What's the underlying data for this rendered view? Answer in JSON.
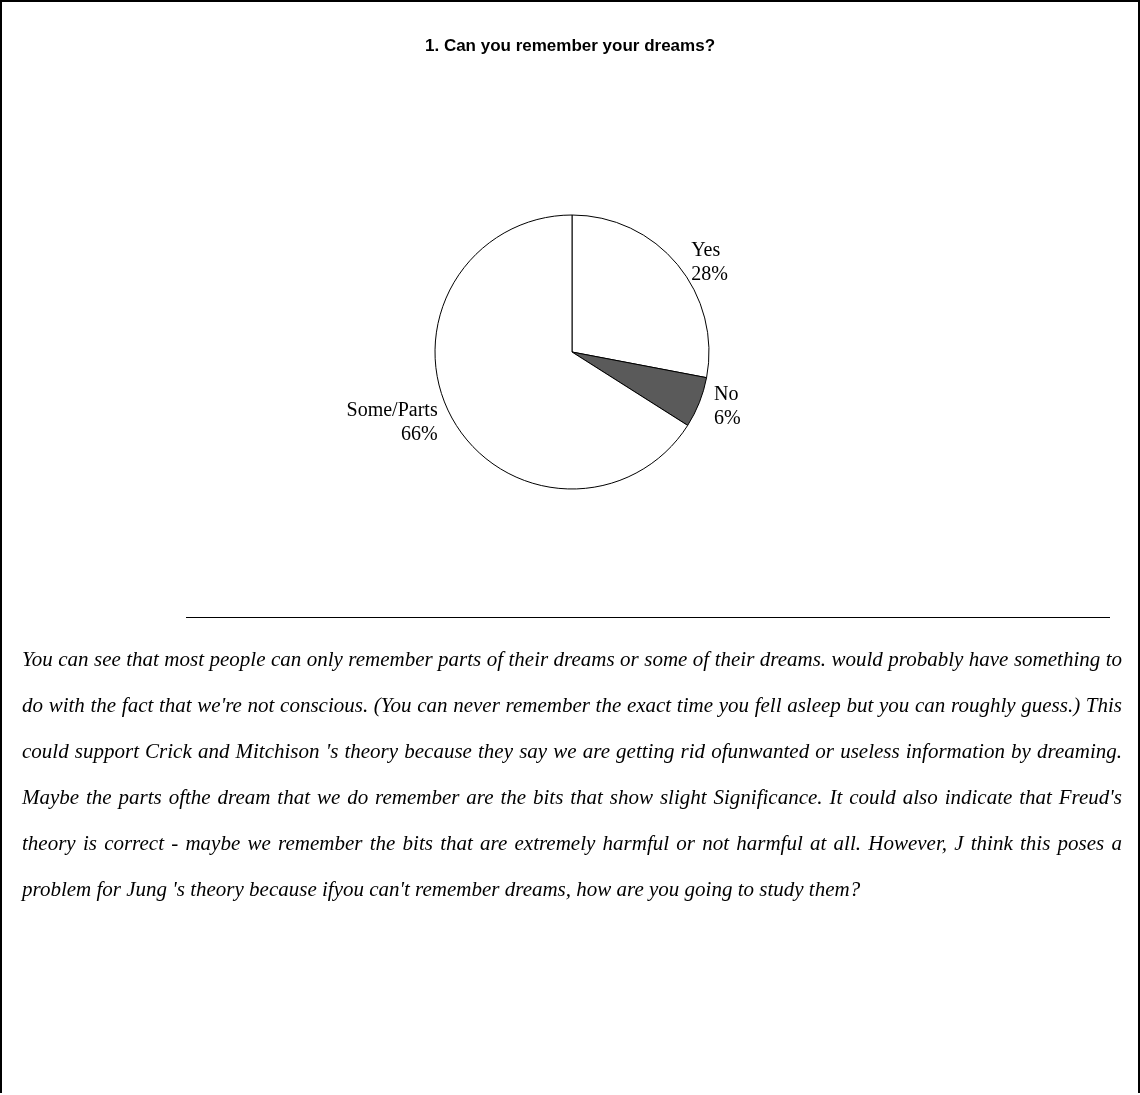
{
  "chart_data": {
    "type": "pie",
    "title": "1. Can you remember your dreams?",
    "categories": [
      "Yes",
      "No",
      "Some/Parts"
    ],
    "values": [
      28,
      6,
      66
    ],
    "colors": [
      "#ffffff",
      "#5a5a5a",
      "#ffffff"
    ],
    "value_labels": [
      "28%",
      "6%",
      "66%"
    ],
    "legend": false,
    "annotations": [
      "You can see that most people can only remember parts of their dreams or some of their dreams. would probably have something to do with the fact that we're not conscious. (You can never remember the exact time you fell asleep but you can roughly guess.) This could support Crick and Mitchison 's theory because they say we are getting rid ofunwanted or useless information by dreaming. Maybe the parts ofthe dream that we do remember are the bits that show slight Significance. It could also indicate that Freud's theory is correct - maybe we remember the bits that are extremely harmful or not harmful at all. However, J think this poses a problem for Jung 's theory because ifyou can't remember dreams, how are you going to study them?"
    ]
  }
}
